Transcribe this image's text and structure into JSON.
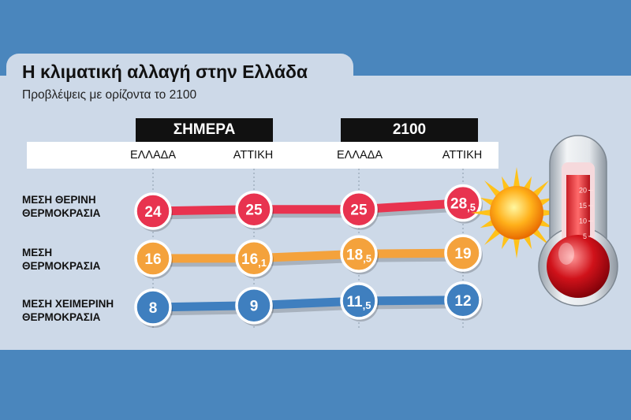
{
  "title": "Η κλιματική αλλαγή στην Ελλάδα",
  "subtitle": "Προβλέψεις με ορίζοντα το 2100",
  "chart_data": {
    "type": "line",
    "periods": [
      "ΣΗΜΕΡΑ",
      "2100"
    ],
    "categories": [
      "ΕΛΛΑΔΑ",
      "ΑΤΤΙΚΗ",
      "ΕΛΛΑΔΑ",
      "ΑΤΤΙΚΗ"
    ],
    "series": [
      {
        "name": "ΜΕΣΗ ΘΕΡΙΝΗ ΘΕΡΜΟΚΡΑΣΙΑ",
        "name_lines": [
          "ΜΕΣΗ ΘΕΡΙΝΗ",
          "ΘΕΡΜΟΚΡΑΣΙΑ"
        ],
        "values": [
          24,
          25,
          25,
          28.5
        ],
        "color": "#e8334f"
      },
      {
        "name": "ΜΕΣΗ ΘΕΡΜΟΚΡΑΣΙΑ",
        "name_lines": [
          "ΜΕΣΗ",
          "ΘΕΡΜΟΚΡΑΣΙΑ"
        ],
        "values": [
          16,
          16.1,
          18.5,
          19
        ],
        "color": "#f4a23c"
      },
      {
        "name": "ΜΕΣΗ ΧΕΙΜΕΡΙΝΗ ΘΕΡΜΟΚΡΑΣΙΑ",
        "name_lines": [
          "ΜΕΣΗ ΧΕΙΜΕΡΙΝΗ",
          "ΘΕΡΜΟΚΡΑΣΙΑ"
        ],
        "values": [
          8,
          9,
          11.5,
          12
        ],
        "color": "#3f7fbf"
      }
    ],
    "thermometer_ticks": [
      5,
      10,
      15,
      20
    ]
  },
  "icons": [
    "sun-icon",
    "thermometer-icon"
  ]
}
